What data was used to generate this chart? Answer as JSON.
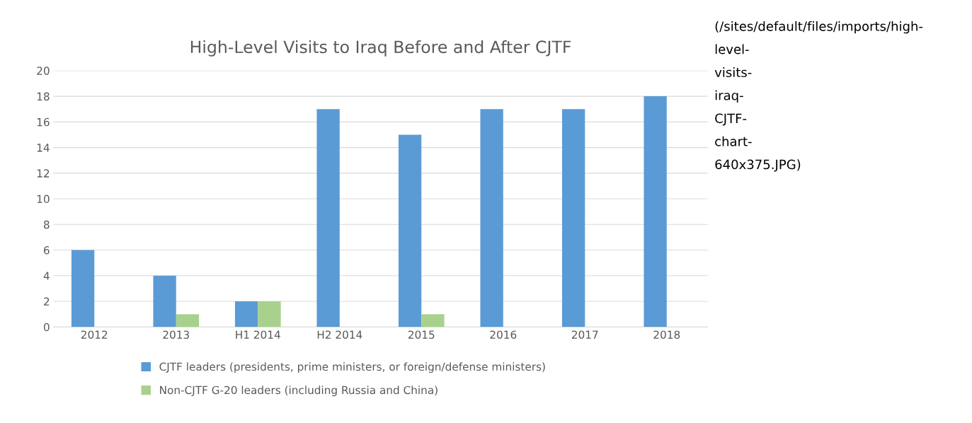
{
  "chart_data": {
    "type": "bar",
    "title": "High-Level Visits to Iraq Before and After CJTF",
    "categories": [
      "2012",
      "2013",
      "H1 2014",
      "H2 2014",
      "2015",
      "2016",
      "2017",
      "2018"
    ],
    "series": [
      {
        "name": "CJTF leaders (presidents, prime ministers, or foreign/defense ministers)",
        "color": "#5b9bd5",
        "values": [
          6,
          4,
          2,
          17,
          15,
          17,
          17,
          18
        ]
      },
      {
        "name": "Non-CJTF G-20 leaders (including Russia and China)",
        "color": "#a9d18e",
        "values": [
          0,
          1,
          2,
          0,
          1,
          0,
          0,
          0
        ]
      }
    ],
    "ylim": [
      0,
      20
    ],
    "yticks": [
      0,
      2,
      4,
      6,
      8,
      10,
      12,
      14,
      16,
      18,
      20
    ],
    "grid": "y",
    "legend": "bottom",
    "annotations": [
      "(/sites/default/files/imports/high-\nlevel-\nvisits-\niraq-\nCJTF-\nchart-\n640x375.JPG)"
    ]
  }
}
